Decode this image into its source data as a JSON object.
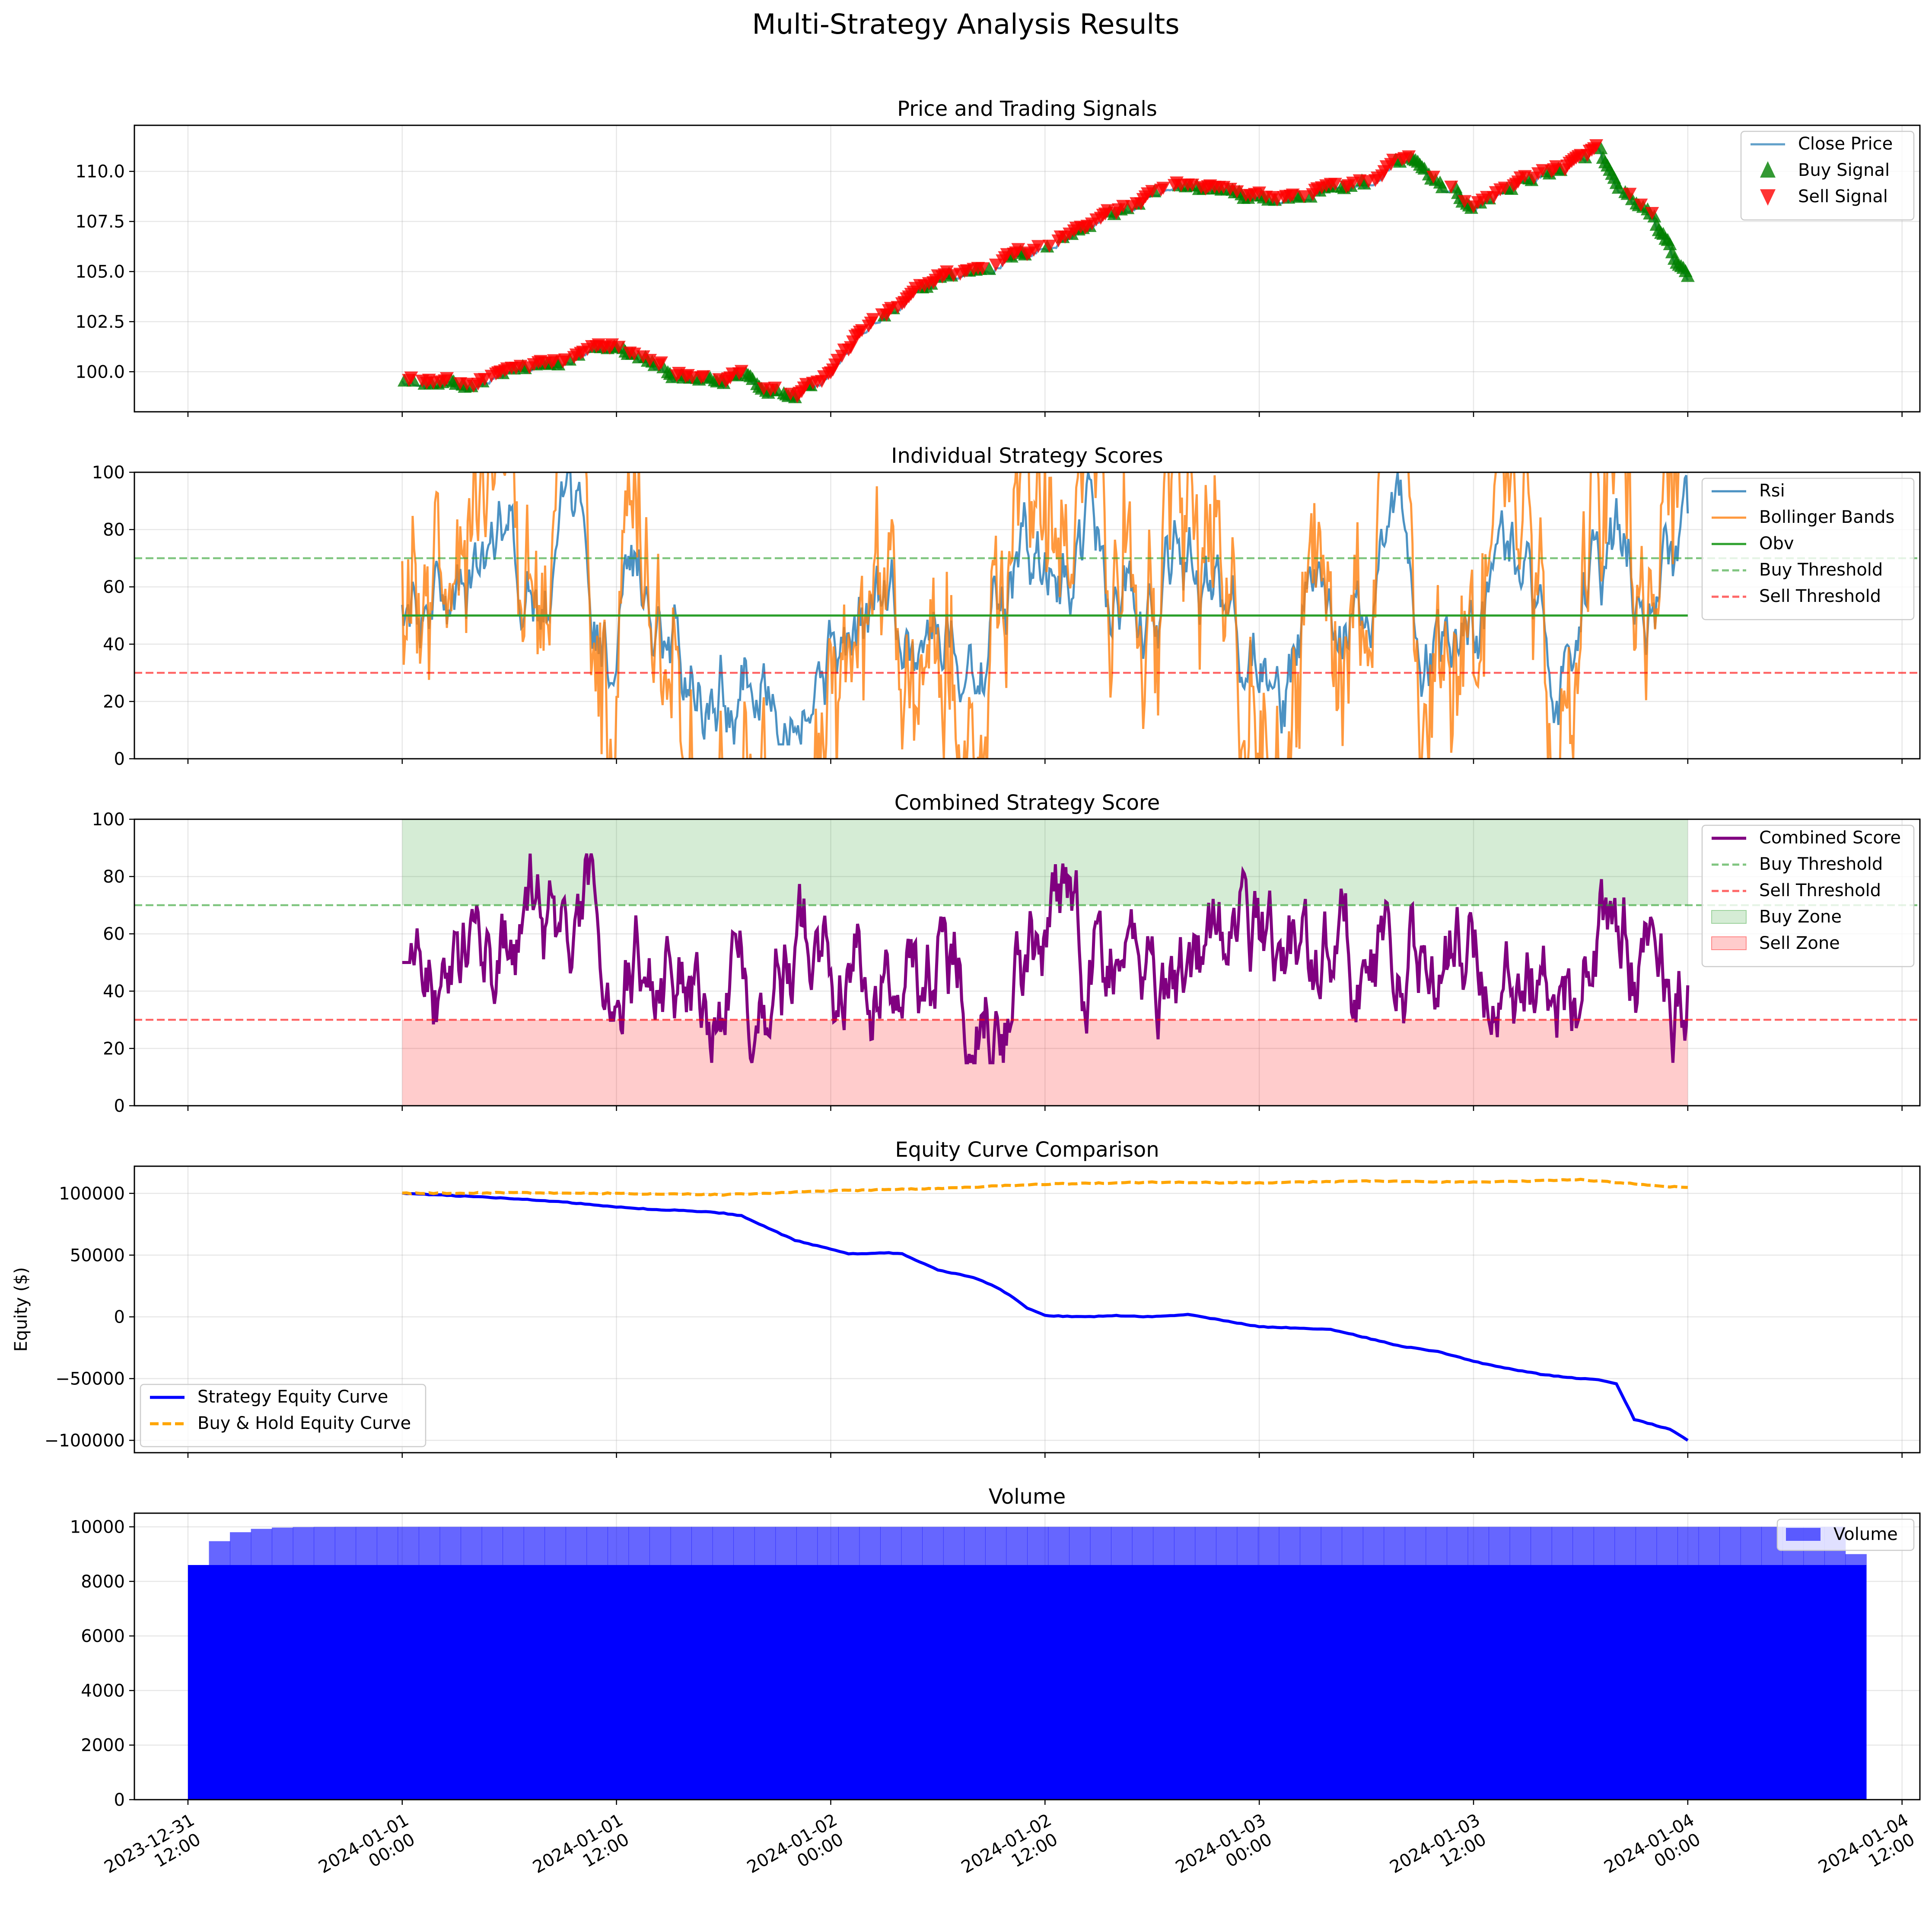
{
  "figure_title": "Multi-Strategy Analysis Results",
  "colors": {
    "close": "#1f77b4",
    "buy": "#008000",
    "sell": "#ff0000",
    "rsi": "#1f77b4",
    "bb": "#ff7f0e",
    "obv": "#2ca02c",
    "buy_thr": "#2ca02c",
    "sell_thr": "#ff0000",
    "combined": "#800080",
    "strategy": "#0000ff",
    "bh": "#ffa500",
    "volume": "#0000ff"
  },
  "x_ticks": [
    {
      "l1": "2023-12-31",
      "l2": "12:00"
    },
    {
      "l1": "2024-01-01",
      "l2": "00:00"
    },
    {
      "l1": "2024-01-01",
      "l2": "12:00"
    },
    {
      "l1": "2024-01-02",
      "l2": "00:00"
    },
    {
      "l1": "2024-01-02",
      "l2": "12:00"
    },
    {
      "l1": "2024-01-03",
      "l2": "00:00"
    },
    {
      "l1": "2024-01-03",
      "l2": "12:00"
    },
    {
      "l1": "2024-01-04",
      "l2": "00:00"
    },
    {
      "l1": "2024-01-04",
      "l2": "12:00"
    }
  ],
  "chart_data": [
    {
      "type": "line",
      "title": "Price and Trading Signals",
      "xlim": [
        "2023-12-31 10:00",
        "2024-01-04 14:30"
      ],
      "ylim": [
        98.0,
        112.3
      ],
      "yticks": [
        "100.0",
        "102.5",
        "105.0",
        "107.5",
        "110.0"
      ],
      "price_anchors_x_hours": [
        0,
        1,
        3,
        6,
        9,
        12,
        14,
        16,
        18,
        19,
        20,
        22,
        24,
        26,
        28,
        30,
        32,
        36,
        40,
        44,
        46,
        48,
        50,
        52,
        54,
        56,
        58,
        60,
        62,
        64,
        66,
        67,
        68,
        70,
        72
      ],
      "price_anchors_y": [
        99.7,
        99.3,
        99.1,
        99.8,
        100.3,
        101.1,
        100.2,
        99.4,
        99.3,
        99.9,
        99.2,
        98.9,
        100.0,
        102.1,
        103.1,
        104.5,
        104.9,
        106.2,
        107.8,
        109.2,
        109.0,
        108.5,
        108.5,
        109.1,
        109.2,
        110.5,
        109.4,
        108.0,
        109.1,
        109.8,
        110.3,
        111.0,
        108.8,
        107.6,
        104.2
      ],
      "series": [
        {
          "name": "Close Price"
        },
        {
          "name": "Buy Signal"
        },
        {
          "name": "Sell Signal"
        }
      ]
    },
    {
      "type": "line",
      "title": "Individual Strategy Scores",
      "ylim": [
        0,
        100
      ],
      "yticks": [
        "0",
        "20",
        "40",
        "60",
        "80",
        "100"
      ],
      "buy_threshold": 70,
      "sell_threshold": 30,
      "obv_value": 50,
      "series": [
        {
          "name": "Rsi"
        },
        {
          "name": "Bollinger Bands"
        },
        {
          "name": "Obv"
        },
        {
          "name": "Buy Threshold"
        },
        {
          "name": "Sell Threshold"
        }
      ]
    },
    {
      "type": "line",
      "title": "Combined Strategy Score",
      "ylim": [
        0,
        100
      ],
      "yticks": [
        "0",
        "20",
        "40",
        "60",
        "80",
        "100"
      ],
      "buy_threshold": 70,
      "sell_threshold": 30,
      "series": [
        {
          "name": "Combined Score"
        },
        {
          "name": "Buy Threshold"
        },
        {
          "name": "Sell Threshold"
        },
        {
          "name": "Buy Zone"
        },
        {
          "name": "Sell Zone"
        }
      ]
    },
    {
      "type": "line",
      "title": "Equity Curve Comparison",
      "ylabel": "Equity ($)",
      "ylim": [
        -110000,
        122000
      ],
      "yticks": [
        "100000",
        "50000",
        "0",
        "−50000",
        "−100000"
      ],
      "strategy_x_hours": [
        0,
        3,
        6,
        9,
        12,
        14,
        16,
        18,
        19,
        20,
        22,
        24,
        25,
        26,
        27,
        28,
        30,
        32,
        33,
        34,
        35,
        36,
        38,
        40,
        42,
        44,
        48,
        52,
        56,
        58,
        60,
        62,
        64,
        66,
        67,
        68,
        69,
        70,
        71,
        72
      ],
      "strategy_y": [
        100000,
        98000,
        96000,
        93000,
        89000,
        87000,
        86000,
        84000,
        82000,
        75000,
        62000,
        55000,
        51000,
        51000,
        52000,
        51000,
        38000,
        32000,
        26000,
        18000,
        7000,
        1000,
        0,
        1000,
        0,
        2000,
        -8000,
        -10000,
        -24000,
        -28000,
        -36000,
        -42000,
        -47000,
        -50000,
        -51000,
        -54000,
        -83000,
        -87000,
        -91000,
        -100000
      ],
      "bh_x_hours": [
        0,
        6,
        12,
        18,
        24,
        30,
        36,
        42,
        48,
        54,
        60,
        66,
        72
      ],
      "bh_y": [
        100000,
        100500,
        100000,
        99000,
        102000,
        104000,
        107500,
        109000,
        108500,
        110000,
        109000,
        111000,
        104500
      ],
      "series": [
        {
          "name": "Strategy Equity Curve"
        },
        {
          "name": "Buy & Hold Equity Curve"
        }
      ]
    },
    {
      "type": "bar",
      "title": "Volume",
      "ylim": [
        0,
        10500
      ],
      "yticks": [
        "0",
        "2000",
        "4000",
        "6000",
        "8000",
        "10000"
      ],
      "volume_start_hours": -12,
      "volume_end_hours": 82,
      "plateau_value": 10000,
      "series": [
        {
          "name": "Volume"
        }
      ]
    }
  ]
}
